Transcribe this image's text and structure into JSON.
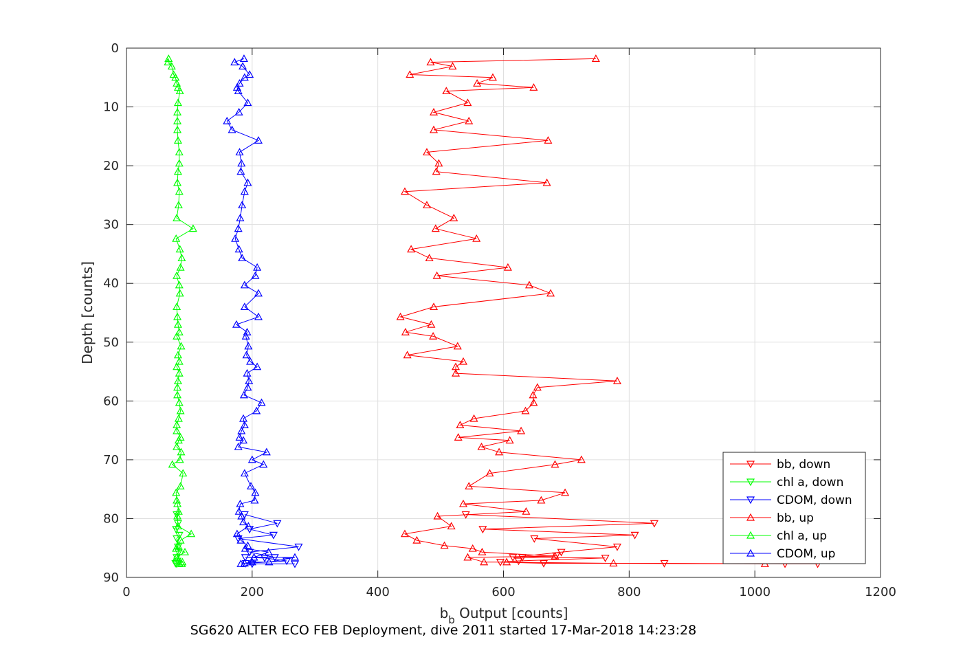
{
  "chart_data": {
    "type": "line",
    "caption": "SG620 ALTER ECO FEB Deployment, dive 2011 started 17-Mar-2018 14:23:28",
    "xlabel_base": "b",
    "xlabel_sub": "b",
    "xlabel_rest": " Output [counts]",
    "ylabel": "Depth [counts]",
    "xlim": [
      0,
      1200
    ],
    "ylim": [
      0,
      90
    ],
    "y_reversed": true,
    "grid": true,
    "legend_position": "bottom-right",
    "x_ticks": [
      "0",
      "200",
      "400",
      "600",
      "800",
      "1000",
      "1200"
    ],
    "y_ticks": [
      "0",
      "10",
      "20",
      "30",
      "40",
      "50",
      "60",
      "70",
      "80",
      "90"
    ],
    "series": [
      {
        "name": "bb, down",
        "color": "#ff0000",
        "marker": "triangle-down",
        "points": [
          [
            540,
            79.3
          ],
          [
            840,
            80.8
          ],
          [
            567,
            81.8
          ],
          [
            809,
            82.8
          ],
          [
            649,
            83.4
          ],
          [
            781,
            84.8
          ],
          [
            692,
            85.7
          ],
          [
            615,
            86.6
          ],
          [
            684,
            86.3
          ],
          [
            630,
            86.6
          ],
          [
            762,
            86.7
          ],
          [
            624,
            87.2
          ],
          [
            595,
            87.4
          ],
          [
            664,
            87.6
          ],
          [
            856,
            87.6
          ],
          [
            1048,
            87.7
          ],
          [
            1100,
            87.7
          ]
        ]
      },
      {
        "name": "chl a, down",
        "color": "#00ff00",
        "marker": "triangle-down",
        "points": [
          [
            80,
            79.3
          ],
          [
            82,
            80.8
          ],
          [
            79,
            81.8
          ],
          [
            84,
            82.8
          ],
          [
            80,
            83.4
          ],
          [
            82,
            84.8
          ],
          [
            83,
            85.7
          ],
          [
            80,
            86.6
          ],
          [
            81,
            87.2
          ],
          [
            78,
            87.6
          ],
          [
            80,
            87.7
          ]
        ]
      },
      {
        "name": "CDOM, down",
        "color": "#0000ff",
        "marker": "triangle-down",
        "points": [
          [
            188,
            79.3
          ],
          [
            240,
            80.8
          ],
          [
            196,
            81.8
          ],
          [
            234,
            82.8
          ],
          [
            178,
            83.4
          ],
          [
            274,
            84.8
          ],
          [
            196,
            85.7
          ],
          [
            236,
            86.6
          ],
          [
            189,
            86.6
          ],
          [
            220,
            86.7
          ],
          [
            255,
            87.2
          ],
          [
            190,
            87.6
          ],
          [
            200,
            87.7
          ],
          [
            268,
            87.7
          ]
        ]
      },
      {
        "name": "bb, up",
        "color": "#ff0000",
        "marker": "triangle-up",
        "points": [
          [
            747,
            1.8
          ],
          [
            484,
            2.4
          ],
          [
            519,
            3.1
          ],
          [
            451,
            4.5
          ],
          [
            583,
            5
          ],
          [
            558,
            6
          ],
          [
            648,
            6.7
          ],
          [
            509,
            7.3
          ],
          [
            543,
            9.3
          ],
          [
            489,
            10.9
          ],
          [
            545,
            12.4
          ],
          [
            489,
            13.9
          ],
          [
            671,
            15.7
          ],
          [
            478,
            17.7
          ],
          [
            497,
            19.6
          ],
          [
            493,
            21
          ],
          [
            669,
            22.9
          ],
          [
            443,
            24.4
          ],
          [
            478,
            26.7
          ],
          [
            521,
            28.9
          ],
          [
            492,
            30.7
          ],
          [
            557,
            32.4
          ],
          [
            453,
            34.2
          ],
          [
            482,
            35.7
          ],
          [
            607,
            37.3
          ],
          [
            494,
            38.7
          ],
          [
            641,
            40.3
          ],
          [
            675,
            41.7
          ],
          [
            489,
            44
          ],
          [
            436,
            45.7
          ],
          [
            485,
            47
          ],
          [
            444,
            48.3
          ],
          [
            488,
            49
          ],
          [
            527,
            50.7
          ],
          [
            447,
            52.2
          ],
          [
            536,
            53.3
          ],
          [
            524,
            54.2
          ],
          [
            524,
            55.3
          ],
          [
            781,
            56.6
          ],
          [
            654,
            57.7
          ],
          [
            647,
            59
          ],
          [
            648,
            60.3
          ],
          [
            635,
            61.7
          ],
          [
            553,
            63
          ],
          [
            531,
            64.1
          ],
          [
            628,
            65.1
          ],
          [
            528,
            66.2
          ],
          [
            610,
            66.7
          ],
          [
            565,
            67.8
          ],
          [
            593,
            68.7
          ],
          [
            724,
            70
          ],
          [
            682,
            70.8
          ],
          [
            578,
            72.3
          ],
          [
            545,
            74.5
          ],
          [
            698,
            75.6
          ],
          [
            660,
            76.9
          ],
          [
            536,
            77.5
          ],
          [
            636,
            78.8
          ],
          [
            495,
            79.6
          ],
          [
            517,
            81.3
          ],
          [
            443,
            82.6
          ],
          [
            462,
            83.7
          ],
          [
            506,
            84.6
          ],
          [
            551,
            85.1
          ],
          [
            566,
            85.7
          ],
          [
            682,
            86.4
          ],
          [
            543,
            86.6
          ],
          [
            569,
            87.4
          ],
          [
            605,
            87.4
          ],
          [
            775,
            87.6
          ],
          [
            1016,
            87.7
          ]
        ]
      },
      {
        "name": "chl a, up",
        "color": "#00ff00",
        "marker": "triangle-up",
        "points": [
          [
            67,
            1.8
          ],
          [
            66,
            2.4
          ],
          [
            72,
            3.1
          ],
          [
            75,
            4.5
          ],
          [
            78,
            5
          ],
          [
            80,
            6
          ],
          [
            82,
            6.7
          ],
          [
            85,
            7.3
          ],
          [
            82,
            9.3
          ],
          [
            81,
            10.9
          ],
          [
            81,
            12.4
          ],
          [
            81,
            13.9
          ],
          [
            82,
            15.7
          ],
          [
            84,
            17.7
          ],
          [
            84,
            19.6
          ],
          [
            82,
            21
          ],
          [
            81,
            22.9
          ],
          [
            84,
            24.4
          ],
          [
            83,
            26.7
          ],
          [
            80,
            28.9
          ],
          [
            106,
            30.7
          ],
          [
            79,
            32.4
          ],
          [
            85,
            34.2
          ],
          [
            88,
            35.7
          ],
          [
            86,
            37.3
          ],
          [
            80,
            38.7
          ],
          [
            84,
            40.3
          ],
          [
            85,
            41.7
          ],
          [
            80,
            44
          ],
          [
            81,
            45.7
          ],
          [
            82,
            47
          ],
          [
            84,
            48.3
          ],
          [
            80,
            49
          ],
          [
            87,
            50.7
          ],
          [
            82,
            52.2
          ],
          [
            84,
            53.3
          ],
          [
            80,
            54.2
          ],
          [
            84,
            55.3
          ],
          [
            82,
            56.6
          ],
          [
            81,
            57.7
          ],
          [
            81,
            59
          ],
          [
            84,
            60.3
          ],
          [
            86,
            61.7
          ],
          [
            83,
            63
          ],
          [
            80,
            64.1
          ],
          [
            80,
            65.1
          ],
          [
            86,
            66.2
          ],
          [
            83,
            66.7
          ],
          [
            80,
            67.8
          ],
          [
            87,
            68.7
          ],
          [
            85,
            70
          ],
          [
            73,
            70.8
          ],
          [
            90,
            72.3
          ],
          [
            86,
            74.5
          ],
          [
            79,
            75.6
          ],
          [
            80,
            76.9
          ],
          [
            81,
            77.5
          ],
          [
            83,
            78.8
          ],
          [
            81,
            79.6
          ],
          [
            82,
            81.3
          ],
          [
            103,
            82.6
          ],
          [
            86,
            83.7
          ],
          [
            82,
            84.6
          ],
          [
            79,
            85.1
          ],
          [
            93,
            85.7
          ],
          [
            80,
            86.6
          ],
          [
            89,
            87.4
          ],
          [
            84,
            87.6
          ],
          [
            88,
            87.7
          ]
        ]
      },
      {
        "name": "CDOM, up",
        "color": "#0000ff",
        "marker": "triangle-up",
        "points": [
          [
            187,
            1.8
          ],
          [
            172,
            2.4
          ],
          [
            185,
            3.1
          ],
          [
            196,
            4.5
          ],
          [
            188,
            5
          ],
          [
            180,
            6
          ],
          [
            176,
            6.7
          ],
          [
            178,
            7.3
          ],
          [
            193,
            9.3
          ],
          [
            179,
            10.9
          ],
          [
            160,
            12.4
          ],
          [
            168,
            13.9
          ],
          [
            210,
            15.7
          ],
          [
            180,
            17.7
          ],
          [
            183,
            19.6
          ],
          [
            182,
            21
          ],
          [
            193,
            22.9
          ],
          [
            188,
            24.4
          ],
          [
            184,
            26.7
          ],
          [
            181,
            28.9
          ],
          [
            178,
            30.7
          ],
          [
            173,
            32.4
          ],
          [
            179,
            34.2
          ],
          [
            184,
            35.7
          ],
          [
            208,
            37.3
          ],
          [
            205,
            38.7
          ],
          [
            188,
            40.3
          ],
          [
            210,
            41.7
          ],
          [
            188,
            44
          ],
          [
            210,
            45.7
          ],
          [
            175,
            47
          ],
          [
            192,
            48.3
          ],
          [
            190,
            49
          ],
          [
            194,
            50.7
          ],
          [
            191,
            52.2
          ],
          [
            197,
            53.3
          ],
          [
            208,
            54.2
          ],
          [
            192,
            55.3
          ],
          [
            195,
            56.6
          ],
          [
            193,
            57.7
          ],
          [
            187,
            59
          ],
          [
            215,
            60.3
          ],
          [
            207,
            61.7
          ],
          [
            186,
            63
          ],
          [
            188,
            64.1
          ],
          [
            183,
            65.1
          ],
          [
            180,
            66.2
          ],
          [
            186,
            66.7
          ],
          [
            178,
            67.8
          ],
          [
            223,
            68.7
          ],
          [
            200,
            70
          ],
          [
            218,
            70.8
          ],
          [
            188,
            72.3
          ],
          [
            198,
            74.5
          ],
          [
            205,
            75.6
          ],
          [
            204,
            76.9
          ],
          [
            181,
            77.5
          ],
          [
            179,
            78.8
          ],
          [
            183,
            79.6
          ],
          [
            186,
            80.6
          ],
          [
            194,
            81.3
          ],
          [
            176,
            82.6
          ],
          [
            182,
            83.7
          ],
          [
            193,
            84.6
          ],
          [
            189,
            85.1
          ],
          [
            226,
            85.7
          ],
          [
            203,
            86.6
          ],
          [
            268,
            86.6
          ],
          [
            227,
            87.4
          ],
          [
            200,
            87.4
          ],
          [
            188,
            87.6
          ],
          [
            182,
            87.7
          ]
        ]
      }
    ]
  }
}
